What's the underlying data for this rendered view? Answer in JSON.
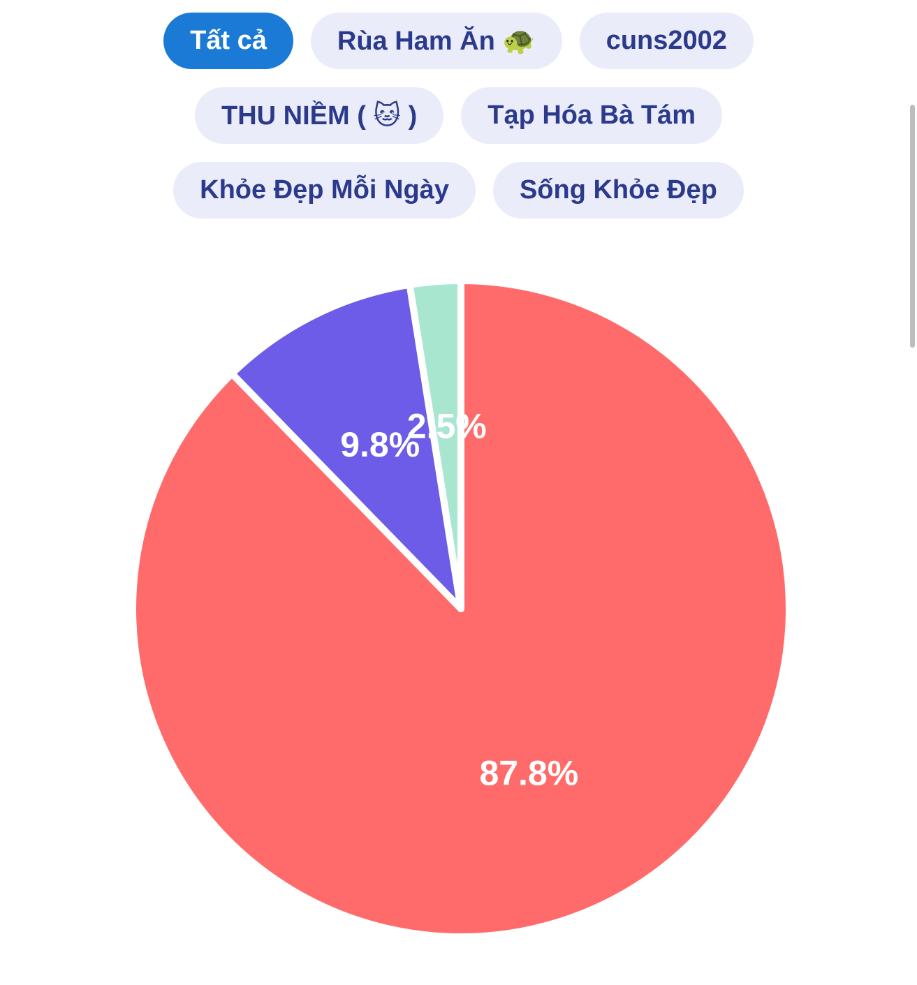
{
  "filters": {
    "rows": [
      [
        {
          "label": "Tất cả",
          "active": true
        },
        {
          "label": "Rùa Ham Ăn 🐢",
          "active": false
        },
        {
          "label": "cuns2002",
          "active": false
        }
      ],
      [
        {
          "label": "THU NIỀM ( 🐱 )",
          "active": false
        },
        {
          "label": "Tạp Hóa Bà Tám",
          "active": false
        }
      ],
      [
        {
          "label": "Khỏe Đẹp Mỗi Ngày",
          "active": false
        },
        {
          "label": "Sống Khỏe Đẹp",
          "active": false
        }
      ]
    ]
  },
  "chart_data": {
    "type": "pie",
    "slices": [
      {
        "label": "87.8%",
        "value": 87.8,
        "color": "#ff6b6b"
      },
      {
        "label": "9.8%",
        "value": 9.8,
        "color": "#6c5ce7"
      },
      {
        "label": "2.5%",
        "value": 2.5,
        "color": "#a8e6cf"
      }
    ],
    "start_angle_deg": 0,
    "direction": "clockwise",
    "slice_border_color": "#ffffff"
  }
}
